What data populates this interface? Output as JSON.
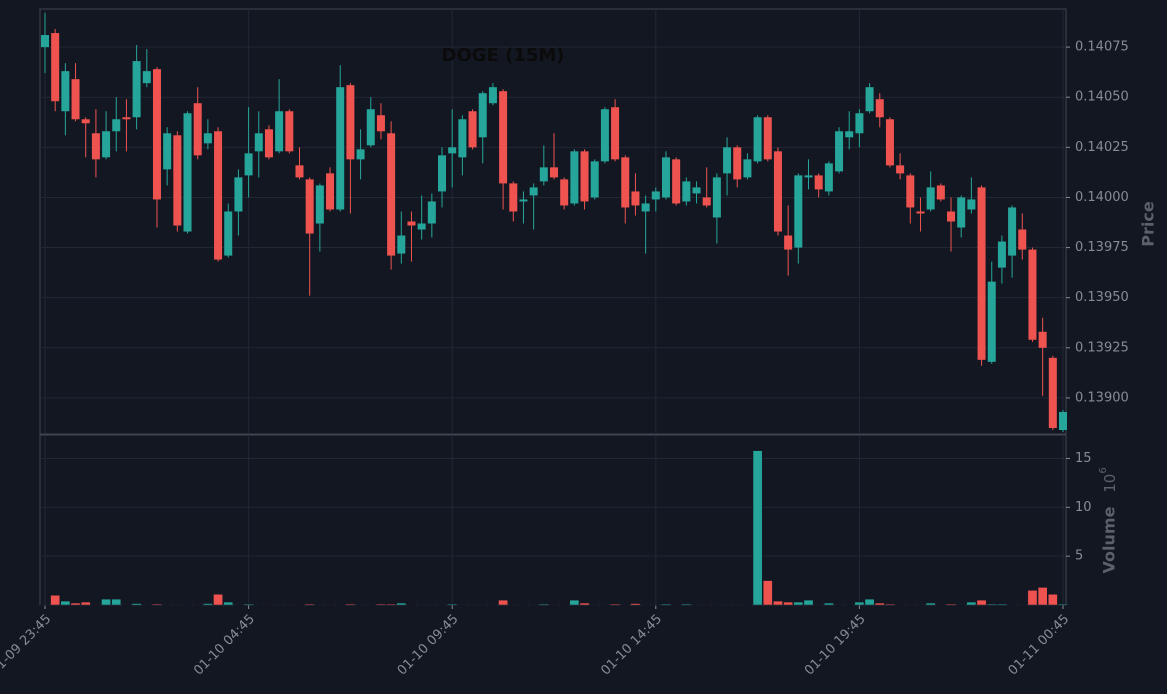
{
  "chart_data": {
    "type": "candlestick",
    "title": "DOGE (15M)",
    "categories": [
      "01-09 23:45",
      null,
      null,
      null,
      null,
      null,
      null,
      null,
      null,
      null,
      null,
      null,
      null,
      null,
      null,
      null,
      null,
      null,
      null,
      null,
      "01-10 04:45",
      null,
      null,
      null,
      null,
      null,
      null,
      null,
      null,
      null,
      null,
      null,
      null,
      null,
      null,
      null,
      null,
      null,
      null,
      null,
      "01-10 09:45",
      null,
      null,
      null,
      null,
      null,
      null,
      null,
      null,
      null,
      null,
      null,
      null,
      null,
      null,
      null,
      null,
      null,
      null,
      null,
      "01-10 14:45",
      null,
      null,
      null,
      null,
      null,
      null,
      null,
      null,
      null,
      null,
      null,
      null,
      null,
      null,
      null,
      null,
      null,
      null,
      null,
      "01-10 19:45",
      null,
      null,
      null,
      null,
      null,
      null,
      null,
      null,
      null,
      null,
      null,
      null,
      null,
      null,
      null,
      null,
      null,
      null,
      null,
      "01-11 00:45"
    ],
    "open": [
      0.14075,
      0.14082,
      0.14043,
      0.14059,
      0.14039,
      0.14032,
      0.1402,
      0.14033,
      0.1404,
      0.1404,
      0.14057,
      0.14064,
      0.14014,
      0.14031,
      0.13983,
      0.14047,
      0.14027,
      0.14033,
      0.13971,
      0.13993,
      0.14011,
      0.14023,
      0.14034,
      0.14023,
      0.14043,
      0.14016,
      0.14009,
      0.13987,
      0.14012,
      0.13994,
      0.14056,
      0.14019,
      0.14026,
      0.14041,
      0.14032,
      0.13972,
      0.13988,
      0.13984,
      0.13987,
      0.14003,
      0.14022,
      0.1402,
      0.14043,
      0.1403,
      0.14047,
      0.14053,
      0.14007,
      0.13998,
      0.14001,
      0.14008,
      0.14015,
      0.14009,
      0.13997,
      0.14023,
      0.14,
      0.14018,
      0.14045,
      0.1402,
      0.14003,
      0.13993,
      0.13999,
      0.14,
      0.14019,
      0.13998,
      0.14002,
      0.14,
      0.1399,
      0.14012,
      0.14025,
      0.1401,
      0.14018,
      0.1404,
      0.14023,
      0.13981,
      0.13975,
      0.1401,
      0.14011,
      0.14003,
      0.14013,
      0.1403,
      0.14032,
      0.14043,
      0.14049,
      0.14039,
      0.14016,
      0.14011,
      0.13993,
      0.13994,
      0.14006,
      0.13993,
      0.13985,
      0.13994,
      0.14005,
      0.13918,
      0.13965,
      0.13971,
      0.13984,
      0.13974,
      0.13933,
      0.1392,
      0.13884
    ],
    "high": [
      0.14092,
      0.14084,
      0.14067,
      0.14067,
      0.1404,
      0.14044,
      0.14043,
      0.1405,
      0.14049,
      0.14076,
      0.14074,
      0.14065,
      0.14035,
      0.14033,
      0.14043,
      0.14055,
      0.14039,
      0.14035,
      0.13997,
      0.14014,
      0.14045,
      0.14043,
      0.14036,
      0.14059,
      0.14044,
      0.14025,
      0.1401,
      0.14007,
      0.14015,
      0.14066,
      0.14057,
      0.14034,
      0.1405,
      0.14047,
      0.14038,
      0.13993,
      0.13993,
      0.14001,
      0.14002,
      0.14025,
      0.14044,
      0.14041,
      0.14044,
      0.14053,
      0.14057,
      0.14054,
      0.14008,
      0.14003,
      0.14007,
      0.14026,
      0.14032,
      0.1401,
      0.14024,
      0.14024,
      0.14019,
      0.14045,
      0.14049,
      0.14021,
      0.14012,
      0.14001,
      0.14005,
      0.14023,
      0.1402,
      0.1401,
      0.14008,
      0.14015,
      0.14012,
      0.1403,
      0.14026,
      0.14022,
      0.14041,
      0.14041,
      0.14025,
      0.13996,
      0.14012,
      0.14019,
      0.14012,
      0.14018,
      0.14035,
      0.14043,
      0.14044,
      0.14057,
      0.14052,
      0.1404,
      0.14022,
      0.14012,
      0.14,
      0.14013,
      0.14007,
      0.14,
      0.14001,
      0.1401,
      0.14006,
      0.13968,
      0.13981,
      0.13996,
      0.13992,
      0.13975,
      0.1394,
      0.13921,
      0.13894
    ],
    "low": [
      0.14062,
      0.14043,
      0.14031,
      0.14038,
      0.1402,
      0.1401,
      0.14019,
      0.14023,
      0.14023,
      0.14034,
      0.14055,
      0.13985,
      0.14006,
      0.13983,
      0.13982,
      0.14019,
      0.14024,
      0.13968,
      0.1397,
      0.13981,
      0.14,
      0.1401,
      0.14019,
      0.14022,
      0.14022,
      0.14009,
      0.13951,
      0.13973,
      0.13993,
      0.13993,
      0.13992,
      0.14009,
      0.14025,
      0.14029,
      0.13964,
      0.13967,
      0.13968,
      0.13979,
      0.1398,
      0.13995,
      0.14005,
      0.14011,
      0.14024,
      0.14017,
      0.14046,
      0.13994,
      0.13988,
      0.13987,
      0.13984,
      0.14006,
      0.14009,
      0.13994,
      0.13996,
      0.13994,
      0.13999,
      0.14017,
      0.14018,
      0.13987,
      0.13991,
      0.13972,
      0.13993,
      0.13999,
      0.13996,
      0.13996,
      0.13997,
      0.13995,
      0.13977,
      0.14001,
      0.14005,
      0.14009,
      0.14017,
      0.14018,
      0.13981,
      0.13961,
      0.13967,
      0.14004,
      0.14,
      0.14001,
      0.14012,
      0.14024,
      0.14025,
      0.14042,
      0.14035,
      0.14015,
      0.14009,
      0.13987,
      0.13983,
      0.13993,
      0.13998,
      0.13973,
      0.1398,
      0.13992,
      0.13916,
      0.13917,
      0.13957,
      0.1396,
      0.13969,
      0.13928,
      0.13901,
      0.13884,
      0.13883
    ],
    "close": [
      0.14081,
      0.14048,
      0.14063,
      0.14039,
      0.14037,
      0.14019,
      0.14033,
      0.14039,
      0.14039,
      0.14068,
      0.14063,
      0.13999,
      0.14032,
      0.13986,
      0.14042,
      0.14021,
      0.14032,
      0.13969,
      0.13993,
      0.1401,
      0.14022,
      0.14032,
      0.1402,
      0.14043,
      0.14023,
      0.1401,
      0.13982,
      0.14006,
      0.13994,
      0.14055,
      0.14019,
      0.14024,
      0.14044,
      0.14033,
      0.13971,
      0.13981,
      0.13986,
      0.13987,
      0.13998,
      0.14021,
      0.14025,
      0.14039,
      0.14025,
      0.14052,
      0.14055,
      0.14007,
      0.13993,
      0.13999,
      0.14005,
      0.14015,
      0.1401,
      0.13996,
      0.14023,
      0.13998,
      0.14018,
      0.14044,
      0.14019,
      0.13995,
      0.13996,
      0.13997,
      0.14003,
      0.1402,
      0.13997,
      0.14008,
      0.14005,
      0.13996,
      0.1401,
      0.14025,
      0.14009,
      0.14019,
      0.1404,
      0.14019,
      0.13983,
      0.13974,
      0.14011,
      0.14011,
      0.14004,
      0.14017,
      0.14033,
      0.14033,
      0.14042,
      0.14055,
      0.1404,
      0.14016,
      0.14012,
      0.13995,
      0.13992,
      0.14005,
      0.13999,
      0.13988,
      0.14,
      0.13999,
      0.13919,
      0.13958,
      0.13978,
      0.13995,
      0.13974,
      0.13929,
      0.13925,
      0.13885,
      0.13893
    ],
    "ylim": [
      0.13882,
      0.14094
    ],
    "yticks": [
      {
        "value": 0.139,
        "label": "0.13900"
      },
      0.13925,
      {
        "value": 0.1395,
        "label": "0.13950"
      },
      0.13975,
      {
        "value": 0.14,
        "label": "0.14000"
      },
      0.14025,
      {
        "value": 0.1405,
        "label": "0.14050"
      },
      0.14075
    ],
    "ylabel": "Price",
    "up_color": "#26a69a",
    "down_color": "#ef5350",
    "grid": true,
    "volume": {
      "values": [
        0.02,
        1.0,
        0.4,
        0.2,
        0.3,
        0.02,
        0.6,
        0.6,
        0.02,
        0.15,
        0.02,
        0.1,
        0.02,
        0.02,
        0.02,
        0.02,
        0.15,
        1.1,
        0.3,
        0.02,
        0.1,
        0.02,
        0.02,
        0.02,
        0.02,
        0.02,
        0.1,
        0.02,
        0.02,
        0.02,
        0.1,
        0.02,
        0.02,
        0.1,
        0.1,
        0.2,
        0.02,
        0.02,
        0.02,
        0.02,
        0.1,
        0.02,
        0.02,
        0.02,
        0.02,
        0.5,
        0.02,
        0.02,
        0.02,
        0.1,
        0.02,
        0.02,
        0.5,
        0.2,
        0.02,
        0.02,
        0.1,
        0.02,
        0.15,
        0.02,
        0.02,
        0.1,
        0.02,
        0.1,
        0.02,
        0.02,
        0.02,
        0.02,
        0.02,
        0.02,
        15.8,
        2.5,
        0.4,
        0.3,
        0.3,
        0.5,
        0.02,
        0.2,
        0.02,
        0.02,
        0.3,
        0.6,
        0.2,
        0.1,
        0.02,
        0.02,
        0.02,
        0.2,
        0.02,
        0.1,
        0.02,
        0.3,
        0.5,
        0.1,
        0.1,
        0.02,
        0.02,
        1.5,
        1.8,
        1.1,
        0.1
      ],
      "ylim": [
        0,
        17.4
      ],
      "yticks": [
        5,
        10,
        15
      ],
      "ylabel": "Volume",
      "multiplier": {
        "base": 10,
        "exponent": 6
      }
    }
  }
}
